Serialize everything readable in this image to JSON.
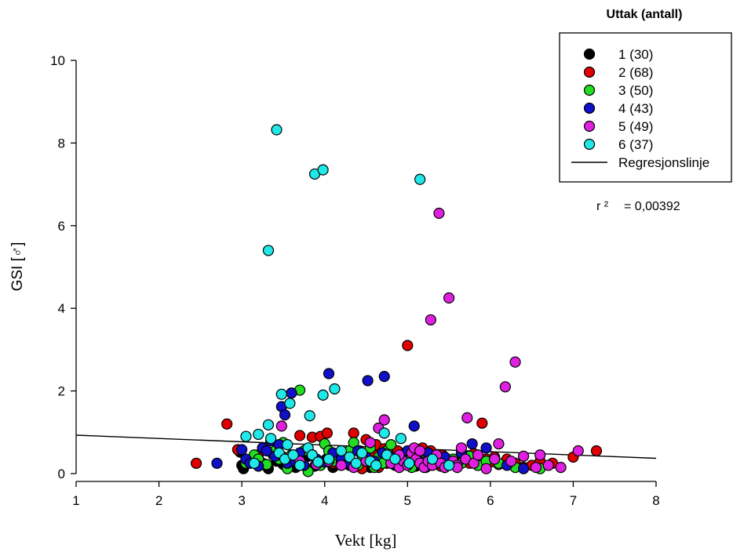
{
  "chart_data": {
    "type": "scatter",
    "xlabel": "Vekt [kg]",
    "ylabel": "GSI [♂]",
    "xlim": [
      1,
      8
    ],
    "ylim": [
      0,
      10
    ],
    "xticks": [
      "1",
      "2",
      "3",
      "4",
      "5",
      "6",
      "7",
      "8"
    ],
    "yticks": [
      "0",
      "2",
      "4",
      "6",
      "8",
      "10"
    ],
    "grid": false,
    "legend": {
      "title": "Uttak (antall)",
      "placement": "top-right",
      "regression_label": "Regresjonslinje"
    },
    "annotation": {
      "r2_label": "r ²",
      "r2_value": "= 0,00392"
    },
    "regression": {
      "x": [
        1,
        8
      ],
      "y": [
        0.93,
        0.37
      ]
    },
    "series": [
      {
        "name": "1 (30)",
        "color": "#000000",
        "points": [
          [
            2.98,
            0.52
          ],
          [
            3.0,
            0.2
          ],
          [
            3.02,
            0.12
          ],
          [
            3.08,
            0.3
          ],
          [
            3.15,
            0.42
          ],
          [
            3.25,
            0.25
          ],
          [
            3.3,
            0.18
          ],
          [
            3.32,
            0.12
          ],
          [
            3.38,
            0.45
          ],
          [
            3.42,
            0.3
          ],
          [
            3.5,
            0.22
          ],
          [
            3.58,
            0.35
          ],
          [
            3.65,
            0.15
          ],
          [
            3.72,
            0.28
          ],
          [
            3.8,
            0.42
          ],
          [
            3.88,
            0.18
          ],
          [
            3.95,
            0.25
          ],
          [
            4.02,
            0.35
          ],
          [
            4.1,
            0.15
          ],
          [
            4.2,
            0.28
          ],
          [
            4.3,
            0.2
          ],
          [
            4.45,
            0.32
          ],
          [
            4.55,
            0.15
          ],
          [
            4.65,
            0.25
          ],
          [
            4.75,
            0.4
          ],
          [
            4.85,
            0.2
          ],
          [
            4.95,
            0.3
          ],
          [
            5.1,
            0.18
          ],
          [
            5.3,
            0.25
          ],
          [
            5.45,
            0.15
          ]
        ]
      },
      {
        "name": "2 (68)",
        "color": "#e00000",
        "points": [
          [
            2.45,
            0.25
          ],
          [
            2.82,
            1.2
          ],
          [
            2.95,
            0.58
          ],
          [
            3.2,
            0.45
          ],
          [
            3.4,
            0.5
          ],
          [
            3.5,
            0.4
          ],
          [
            3.6,
            0.35
          ],
          [
            3.7,
            0.92
          ],
          [
            3.85,
            0.88
          ],
          [
            3.95,
            0.9
          ],
          [
            4.03,
            0.98
          ],
          [
            4.1,
            0.25
          ],
          [
            4.2,
            0.35
          ],
          [
            4.3,
            0.45
          ],
          [
            4.35,
            0.98
          ],
          [
            4.42,
            0.55
          ],
          [
            4.45,
            0.12
          ],
          [
            4.5,
            0.82
          ],
          [
            4.55,
            0.3
          ],
          [
            4.6,
            0.45
          ],
          [
            4.62,
            0.7
          ],
          [
            4.65,
            0.15
          ],
          [
            4.7,
            0.38
          ],
          [
            4.72,
            0.6
          ],
          [
            4.75,
            0.25
          ],
          [
            4.8,
            0.45
          ],
          [
            4.85,
            0.35
          ],
          [
            4.88,
            0.55
          ],
          [
            4.9,
            0.2
          ],
          [
            4.95,
            0.45
          ],
          [
            5.0,
            0.3
          ],
          [
            5.0,
            3.1
          ],
          [
            5.02,
            0.55
          ],
          [
            5.05,
            0.18
          ],
          [
            5.1,
            0.4
          ],
          [
            5.12,
            0.25
          ],
          [
            5.15,
            0.5
          ],
          [
            5.18,
            0.62
          ],
          [
            5.2,
            0.35
          ],
          [
            5.22,
            0.15
          ],
          [
            5.25,
            0.45
          ],
          [
            5.28,
            0.55
          ],
          [
            5.3,
            0.28
          ],
          [
            5.35,
            0.38
          ],
          [
            5.4,
            0.18
          ],
          [
            5.42,
            0.45
          ],
          [
            5.48,
            0.3
          ],
          [
            5.5,
            0.22
          ],
          [
            5.55,
            0.35
          ],
          [
            5.6,
            0.25
          ],
          [
            5.65,
            0.45
          ],
          [
            5.7,
            0.38
          ],
          [
            5.75,
            0.25
          ],
          [
            5.8,
            0.48
          ],
          [
            5.85,
            0.2
          ],
          [
            5.9,
            1.22
          ],
          [
            5.95,
            0.35
          ],
          [
            6.0,
            0.28
          ],
          [
            6.05,
            0.4
          ],
          [
            6.1,
            0.22
          ],
          [
            6.2,
            0.35
          ],
          [
            6.3,
            0.25
          ],
          [
            6.4,
            0.15
          ],
          [
            6.5,
            0.2
          ],
          [
            6.6,
            0.3
          ],
          [
            6.75,
            0.25
          ],
          [
            7.0,
            0.4
          ],
          [
            7.28,
            0.55
          ]
        ]
      },
      {
        "name": "3 (50)",
        "color": "#22dd22",
        "points": [
          [
            3.05,
            0.25
          ],
          [
            3.15,
            0.45
          ],
          [
            3.2,
            0.35
          ],
          [
            3.3,
            0.22
          ],
          [
            3.4,
            0.55
          ],
          [
            3.45,
            0.35
          ],
          [
            3.5,
            0.75
          ],
          [
            3.55,
            0.12
          ],
          [
            3.6,
            0.45
          ],
          [
            3.65,
            0.3
          ],
          [
            3.7,
            2.02
          ],
          [
            3.75,
            0.55
          ],
          [
            3.8,
            0.05
          ],
          [
            3.85,
            0.45
          ],
          [
            3.9,
            0.35
          ],
          [
            3.95,
            0.2
          ],
          [
            4.0,
            0.72
          ],
          [
            4.05,
            0.55
          ],
          [
            4.1,
            0.3
          ],
          [
            4.15,
            0.45
          ],
          [
            4.2,
            0.25
          ],
          [
            4.25,
            0.35
          ],
          [
            4.3,
            0.55
          ],
          [
            4.35,
            0.75
          ],
          [
            4.4,
            0.2
          ],
          [
            4.45,
            0.45
          ],
          [
            4.5,
            0.3
          ],
          [
            4.55,
            0.62
          ],
          [
            4.6,
            0.15
          ],
          [
            4.65,
            0.4
          ],
          [
            4.7,
            0.25
          ],
          [
            4.75,
            0.55
          ],
          [
            4.8,
            0.7
          ],
          [
            4.85,
            0.35
          ],
          [
            4.9,
            0.2
          ],
          [
            4.95,
            0.45
          ],
          [
            5.0,
            0.3
          ],
          [
            5.05,
            0.15
          ],
          [
            5.15,
            0.35
          ],
          [
            5.25,
            0.2
          ],
          [
            5.35,
            0.28
          ],
          [
            5.45,
            0.15
          ],
          [
            5.55,
            0.35
          ],
          [
            5.65,
            0.25
          ],
          [
            5.75,
            0.42
          ],
          [
            5.85,
            0.2
          ],
          [
            5.95,
            0.3
          ],
          [
            6.1,
            0.25
          ],
          [
            6.3,
            0.15
          ],
          [
            6.6,
            0.12
          ]
        ]
      },
      {
        "name": "4 (43)",
        "color": "#1010c8",
        "points": [
          [
            2.7,
            0.25
          ],
          [
            3.0,
            0.58
          ],
          [
            3.05,
            0.35
          ],
          [
            3.1,
            0.25
          ],
          [
            3.2,
            0.18
          ],
          [
            3.25,
            0.62
          ],
          [
            3.3,
            0.55
          ],
          [
            3.35,
            0.8
          ],
          [
            3.4,
            0.42
          ],
          [
            3.45,
            0.7
          ],
          [
            3.48,
            1.62
          ],
          [
            3.52,
            1.42
          ],
          [
            3.55,
            0.25
          ],
          [
            3.6,
            1.95
          ],
          [
            3.65,
            0.3
          ],
          [
            3.7,
            0.5
          ],
          [
            3.75,
            0.2
          ],
          [
            3.9,
            0.35
          ],
          [
            4.0,
            0.28
          ],
          [
            4.05,
            2.42
          ],
          [
            4.1,
            0.5
          ],
          [
            4.2,
            0.35
          ],
          [
            4.3,
            0.25
          ],
          [
            4.4,
            0.55
          ],
          [
            4.5,
            0.4
          ],
          [
            4.52,
            2.25
          ],
          [
            4.6,
            0.3
          ],
          [
            4.7,
            0.5
          ],
          [
            4.72,
            2.35
          ],
          [
            4.8,
            0.4
          ],
          [
            4.9,
            0.25
          ],
          [
            5.0,
            0.55
          ],
          [
            5.08,
            1.15
          ],
          [
            5.15,
            0.3
          ],
          [
            5.25,
            0.5
          ],
          [
            5.35,
            0.25
          ],
          [
            5.45,
            0.4
          ],
          [
            5.55,
            0.3
          ],
          [
            5.65,
            0.5
          ],
          [
            5.78,
            0.72
          ],
          [
            5.95,
            0.62
          ],
          [
            6.2,
            0.2
          ],
          [
            6.4,
            0.12
          ]
        ]
      },
      {
        "name": "5 (49)",
        "color": "#e020e0",
        "points": [
          [
            3.48,
            1.15
          ],
          [
            3.7,
            0.3
          ],
          [
            3.9,
            0.22
          ],
          [
            4.05,
            0.3
          ],
          [
            4.2,
            0.2
          ],
          [
            4.35,
            0.15
          ],
          [
            4.5,
            0.3
          ],
          [
            4.55,
            0.75
          ],
          [
            4.65,
            1.1
          ],
          [
            4.72,
            1.3
          ],
          [
            4.8,
            0.25
          ],
          [
            4.9,
            0.15
          ],
          [
            4.95,
            0.3
          ],
          [
            5.0,
            0.2
          ],
          [
            5.05,
            0.5
          ],
          [
            5.08,
            0.62
          ],
          [
            5.1,
            0.35
          ],
          [
            5.15,
            0.25
          ],
          [
            5.2,
            0.15
          ],
          [
            5.25,
            0.3
          ],
          [
            5.28,
            3.72
          ],
          [
            5.3,
            0.2
          ],
          [
            5.35,
            0.45
          ],
          [
            5.38,
            6.3
          ],
          [
            5.4,
            0.25
          ],
          [
            5.45,
            0.15
          ],
          [
            5.5,
            4.25
          ],
          [
            5.55,
            0.3
          ],
          [
            5.6,
            0.2
          ],
          [
            5.65,
            0.62
          ],
          [
            5.7,
            0.35
          ],
          [
            5.72,
            1.35
          ],
          [
            5.8,
            0.25
          ],
          [
            5.85,
            0.45
          ],
          [
            5.95,
            0.12
          ],
          [
            6.1,
            0.72
          ],
          [
            6.18,
            2.1
          ],
          [
            6.25,
            0.3
          ],
          [
            6.3,
            2.7
          ],
          [
            6.4,
            0.42
          ],
          [
            6.55,
            0.15
          ],
          [
            6.6,
            0.45
          ],
          [
            6.7,
            0.2
          ],
          [
            6.85,
            0.15
          ],
          [
            7.06,
            0.55
          ],
          [
            5.15,
            0.55
          ],
          [
            4.9,
            0.45
          ],
          [
            5.6,
            0.15
          ],
          [
            6.05,
            0.35
          ]
        ]
      },
      {
        "name": "6 (37)",
        "color": "#20e8e8",
        "points": [
          [
            3.05,
            0.9
          ],
          [
            3.15,
            0.25
          ],
          [
            3.2,
            0.95
          ],
          [
            3.32,
            1.18
          ],
          [
            3.32,
            5.4
          ],
          [
            3.35,
            0.85
          ],
          [
            3.42,
            8.32
          ],
          [
            3.45,
            0.5
          ],
          [
            3.48,
            1.92
          ],
          [
            3.52,
            0.35
          ],
          [
            3.55,
            0.7
          ],
          [
            3.58,
            1.7
          ],
          [
            3.62,
            0.45
          ],
          [
            3.7,
            0.2
          ],
          [
            3.8,
            0.62
          ],
          [
            3.82,
            1.4
          ],
          [
            3.85,
            0.45
          ],
          [
            3.88,
            7.25
          ],
          [
            3.92,
            0.28
          ],
          [
            3.98,
            7.35
          ],
          [
            3.98,
            1.9
          ],
          [
            4.05,
            0.35
          ],
          [
            4.12,
            2.05
          ],
          [
            4.2,
            0.55
          ],
          [
            4.3,
            0.4
          ],
          [
            4.38,
            0.25
          ],
          [
            4.45,
            0.5
          ],
          [
            4.55,
            0.3
          ],
          [
            4.62,
            0.2
          ],
          [
            4.72,
            0.98
          ],
          [
            4.75,
            0.45
          ],
          [
            4.85,
            0.35
          ],
          [
            4.92,
            0.85
          ],
          [
            5.02,
            0.25
          ],
          [
            5.15,
            7.12
          ],
          [
            5.3,
            0.35
          ],
          [
            5.5,
            0.2
          ]
        ]
      }
    ]
  }
}
